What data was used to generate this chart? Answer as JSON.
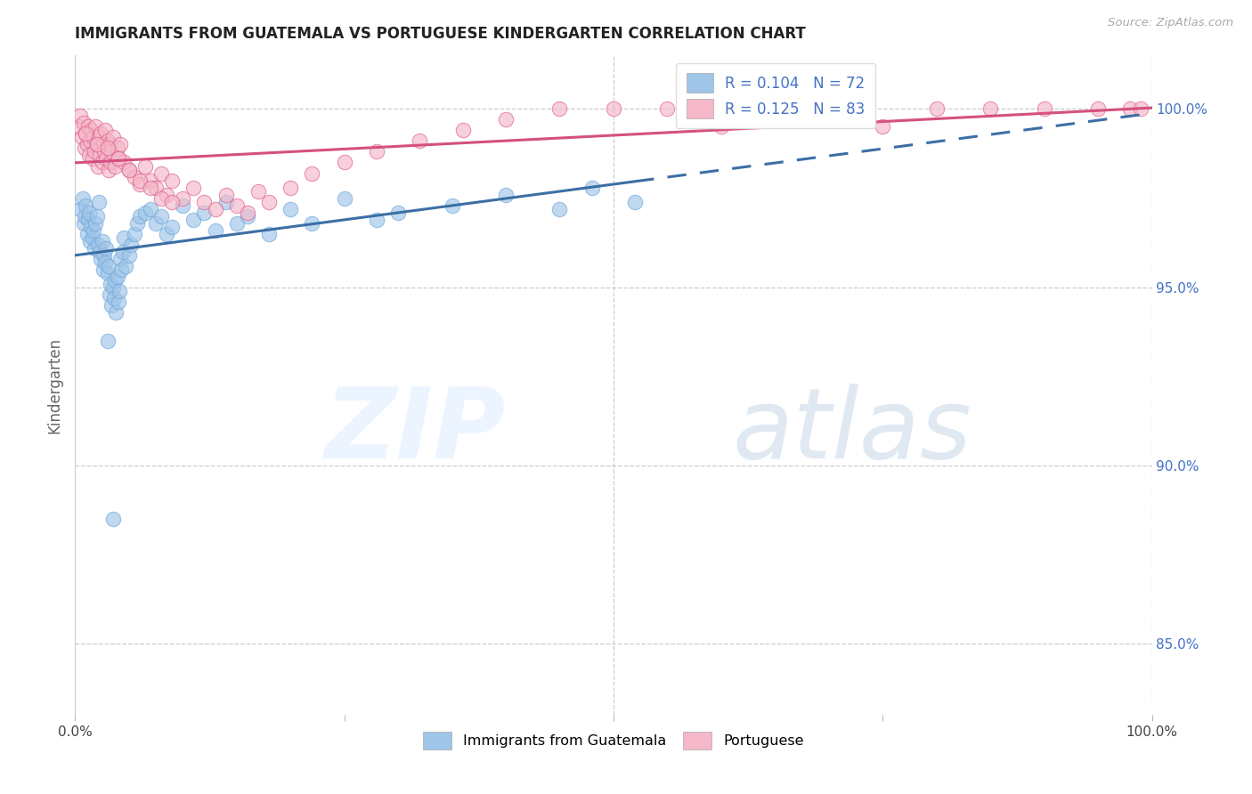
{
  "title": "IMMIGRANTS FROM GUATEMALA VS PORTUGUESE KINDERGARTEN CORRELATION CHART",
  "source": "Source: ZipAtlas.com",
  "ylabel": "Kindergarten",
  "right_ytick_vals": [
    85.0,
    90.0,
    95.0,
    100.0
  ],
  "right_ytick_labels": [
    "85.0%",
    "90.0%",
    "95.0%",
    "100.0%"
  ],
  "xtick_vals": [
    0,
    25,
    50,
    75,
    100
  ],
  "xtick_labels": [
    "0.0%",
    "",
    "",
    "",
    "100.0%"
  ],
  "blue_color": "#9fc5e8",
  "pink_color": "#f4b8c8",
  "blue_edge_color": "#6fa8dc",
  "pink_edge_color": "#e06090",
  "blue_line_color": "#3c6ea5",
  "pink_line_color": "#d45080",
  "blue_label": "Immigrants from Guatemala",
  "pink_label": "Portuguese",
  "blue_legend": "R = 0.104   N = 72",
  "pink_legend": "R = 0.125   N = 83",
  "xmin": 0,
  "xmax": 100,
  "ymin": 83.0,
  "ymax": 101.5,
  "blue_x": [
    0.5,
    0.7,
    0.8,
    0.9,
    1.0,
    1.1,
    1.2,
    1.3,
    1.4,
    1.5,
    1.6,
    1.7,
    1.8,
    1.9,
    2.0,
    2.1,
    2.2,
    2.3,
    2.4,
    2.5,
    2.6,
    2.7,
    2.8,
    2.9,
    3.0,
    3.1,
    3.2,
    3.3,
    3.4,
    3.5,
    3.6,
    3.7,
    3.8,
    3.9,
    4.0,
    4.1,
    4.2,
    4.3,
    4.4,
    4.5,
    4.7,
    5.0,
    5.2,
    5.5,
    5.8,
    6.0,
    6.5,
    7.0,
    7.5,
    8.0,
    8.5,
    9.0,
    10.0,
    11.0,
    12.0,
    13.0,
    14.0,
    15.0,
    16.0,
    18.0,
    20.0,
    22.0,
    25.0,
    28.0,
    30.0,
    35.0,
    40.0,
    45.0,
    48.0,
    52.0,
    3.0,
    3.5
  ],
  "blue_y": [
    97.2,
    97.5,
    96.8,
    97.0,
    97.3,
    96.5,
    96.9,
    97.1,
    96.3,
    96.7,
    96.4,
    96.6,
    96.1,
    96.8,
    97.0,
    96.2,
    97.4,
    96.0,
    95.8,
    96.3,
    95.5,
    95.9,
    95.7,
    96.1,
    95.4,
    95.6,
    94.8,
    95.1,
    94.5,
    95.0,
    94.7,
    95.2,
    94.3,
    95.3,
    94.6,
    94.9,
    95.8,
    95.5,
    96.0,
    96.4,
    95.6,
    95.9,
    96.2,
    96.5,
    96.8,
    97.0,
    97.1,
    97.2,
    96.8,
    97.0,
    96.5,
    96.7,
    97.3,
    96.9,
    97.1,
    96.6,
    97.4,
    96.8,
    97.0,
    96.5,
    97.2,
    96.8,
    97.5,
    96.9,
    97.1,
    97.3,
    97.6,
    97.2,
    97.8,
    97.4,
    93.5,
    88.5
  ],
  "pink_x": [
    0.3,
    0.5,
    0.6,
    0.8,
    0.9,
    1.0,
    1.1,
    1.2,
    1.3,
    1.4,
    1.5,
    1.6,
    1.7,
    1.8,
    1.9,
    2.0,
    2.1,
    2.2,
    2.3,
    2.4,
    2.5,
    2.6,
    2.7,
    2.8,
    2.9,
    3.0,
    3.1,
    3.2,
    3.3,
    3.4,
    3.5,
    3.7,
    3.9,
    4.0,
    4.2,
    4.5,
    5.0,
    5.5,
    6.0,
    6.5,
    7.0,
    7.5,
    8.0,
    8.5,
    9.0,
    10.0,
    11.0,
    12.0,
    13.0,
    14.0,
    15.0,
    16.0,
    17.0,
    18.0,
    20.0,
    22.0,
    25.0,
    28.0,
    32.0,
    36.0,
    40.0,
    45.0,
    50.0,
    55.0,
    60.0,
    65.0,
    70.0,
    75.0,
    80.0,
    85.0,
    90.0,
    95.0,
    98.0,
    99.0,
    1.0,
    2.0,
    3.0,
    4.0,
    5.0,
    6.0,
    7.0,
    8.0,
    9.0
  ],
  "pink_y": [
    99.5,
    99.8,
    99.2,
    99.6,
    98.9,
    99.3,
    99.0,
    99.5,
    98.7,
    99.1,
    99.4,
    98.6,
    99.2,
    98.8,
    99.5,
    99.0,
    98.4,
    99.2,
    98.7,
    99.3,
    98.5,
    99.0,
    98.8,
    99.4,
    98.6,
    99.1,
    98.3,
    99.0,
    98.5,
    98.8,
    99.2,
    98.4,
    98.9,
    98.6,
    99.0,
    98.5,
    98.3,
    98.1,
    97.9,
    98.4,
    98.0,
    97.8,
    98.2,
    97.6,
    98.0,
    97.5,
    97.8,
    97.4,
    97.2,
    97.6,
    97.3,
    97.1,
    97.7,
    97.4,
    97.8,
    98.2,
    98.5,
    98.8,
    99.1,
    99.4,
    99.7,
    100.0,
    100.0,
    100.0,
    99.5,
    100.0,
    99.8,
    99.5,
    100.0,
    100.0,
    100.0,
    100.0,
    100.0,
    100.0,
    99.3,
    99.0,
    98.9,
    98.6,
    98.3,
    98.0,
    97.8,
    97.5,
    97.4
  ]
}
